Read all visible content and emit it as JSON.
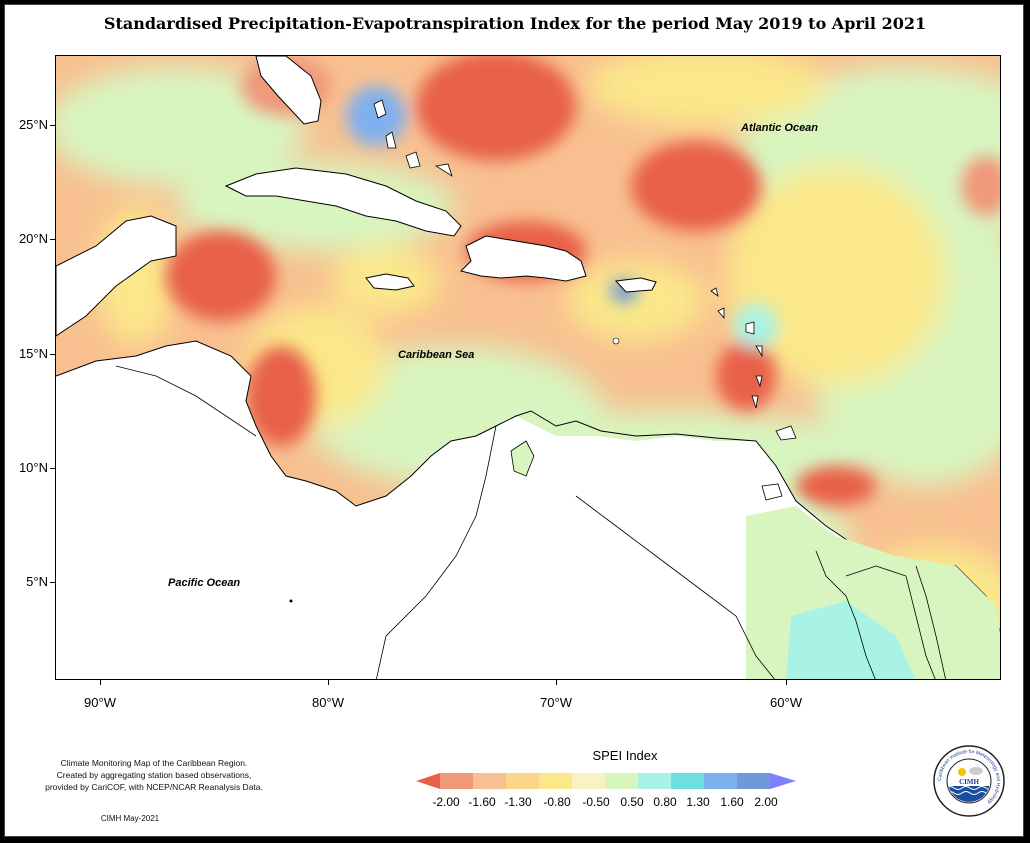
{
  "title": "Standardised Precipitation-Evapotranspiration Index for the period May 2019 to April 2021",
  "map": {
    "labels": {
      "atlantic": "Atlantic Ocean",
      "caribbean": "Caribbean Sea",
      "pacific": "Pacific Ocean"
    },
    "lat_ticks": [
      "25°N",
      "20°N",
      "15°N",
      "10°N",
      "5°N"
    ],
    "lon_ticks": [
      "90°W",
      "80°W",
      "70°W",
      "60°W"
    ]
  },
  "legend": {
    "title": "SPEI Index",
    "tick_labels": [
      "-2.00",
      "-1.60",
      "-1.30",
      "-0.80",
      "-0.50",
      "0.50",
      "0.80",
      "1.30",
      "1.60",
      "2.00"
    ],
    "colors": [
      "#e8604a",
      "#f0987a",
      "#f8c090",
      "#fbe88a",
      "#f9f3c4",
      "#d8f5c0",
      "#a8f3e6",
      "#6fe0e0",
      "#7fb0f0",
      "#6f9ad8",
      "#8080ff"
    ]
  },
  "credit": {
    "lines": [
      "Climate Monitoring Map of the Caribbean Region.",
      "Created by aggregating station based observations,",
      "provided by CariCOF, with NCEP/NCAR Reanalysis Data."
    ],
    "stamp": "CIMH May-2021"
  },
  "logo": {
    "text": "CIMH",
    "ring_text": "Caribbean Institute for Meteorology and Hydrology"
  }
}
